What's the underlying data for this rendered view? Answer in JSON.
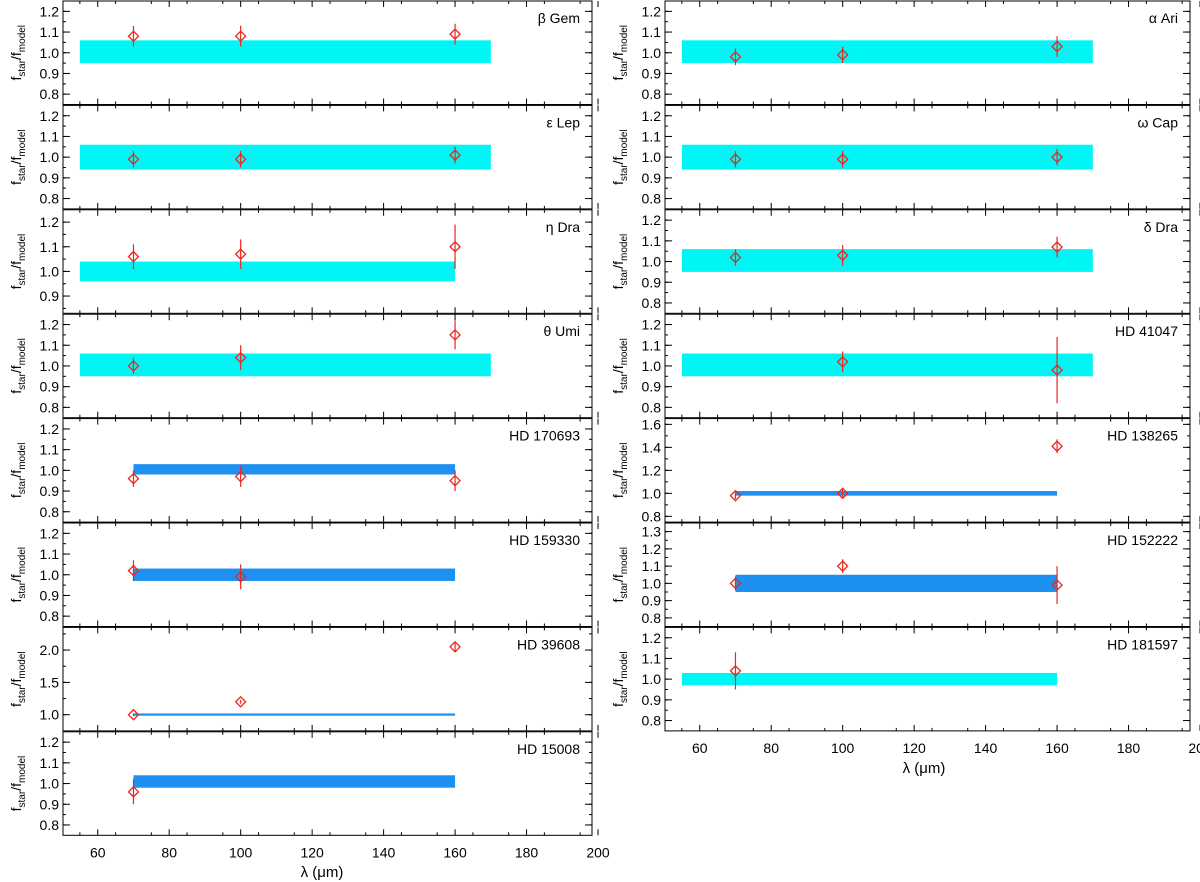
{
  "colors": {
    "cyan_band": "#00f5f5",
    "blue_band": "#1e90f0",
    "marker": "#e8281e",
    "frame": "#000000"
  },
  "marker_icon": "open-diamond",
  "chart_data": [
    {
      "type": "scatter",
      "label": "β Gem",
      "ylim": [
        0.75,
        1.25
      ],
      "yticks": [
        "0.8",
        "0.9",
        "1.0",
        "1.1",
        "1.2"
      ],
      "ytick_values": [
        0.8,
        0.9,
        1.0,
        1.1,
        1.2
      ],
      "band": {
        "x": [
          55,
          170
        ],
        "y": [
          0.95,
          1.06
        ],
        "color": "cyan"
      },
      "points": [
        {
          "x": 70,
          "y": 1.08,
          "err": 0.05
        },
        {
          "x": 100,
          "y": 1.08,
          "err": 0.05
        },
        {
          "x": 160,
          "y": 1.09,
          "err": 0.05
        }
      ]
    },
    {
      "type": "scatter",
      "label": "ε Lep",
      "ylim": [
        0.75,
        1.25
      ],
      "yticks": [
        "0.8",
        "0.9",
        "1.0",
        "1.1",
        "1.2"
      ],
      "ytick_values": [
        0.8,
        0.9,
        1.0,
        1.1,
        1.2
      ],
      "band": {
        "x": [
          55,
          170
        ],
        "y": [
          0.94,
          1.06
        ],
        "color": "cyan"
      },
      "points": [
        {
          "x": 70,
          "y": 0.99,
          "err": 0.04
        },
        {
          "x": 100,
          "y": 0.99,
          "err": 0.04
        },
        {
          "x": 160,
          "y": 1.01,
          "err": 0.04
        }
      ]
    },
    {
      "type": "scatter",
      "label": "η Dra",
      "ylim": [
        0.83,
        1.25
      ],
      "yticks": [
        "0.9",
        "1.0",
        "1.1",
        "1.2"
      ],
      "ytick_values": [
        0.9,
        1.0,
        1.1,
        1.2
      ],
      "band": {
        "x": [
          55,
          160
        ],
        "y": [
          0.96,
          1.04
        ],
        "color": "cyan"
      },
      "points": [
        {
          "x": 70,
          "y": 1.06,
          "err": 0.05
        },
        {
          "x": 100,
          "y": 1.07,
          "err": 0.06
        },
        {
          "x": 160,
          "y": 1.1,
          "err": 0.09
        }
      ]
    },
    {
      "type": "scatter",
      "label": "θ Umi",
      "ylim": [
        0.75,
        1.25
      ],
      "yticks": [
        "0.8",
        "0.9",
        "1.0",
        "1.1",
        "1.2"
      ],
      "ytick_values": [
        0.8,
        0.9,
        1.0,
        1.1,
        1.2
      ],
      "band": {
        "x": [
          55,
          170
        ],
        "y": [
          0.95,
          1.06
        ],
        "color": "cyan"
      },
      "points": [
        {
          "x": 70,
          "y": 1.0,
          "err": 0.04
        },
        {
          "x": 100,
          "y": 1.04,
          "err": 0.06
        },
        {
          "x": 160,
          "y": 1.15,
          "err": 0.07
        }
      ]
    },
    {
      "type": "scatter",
      "label": "HD 170693",
      "ylim": [
        0.75,
        1.25
      ],
      "yticks": [
        "0.8",
        "0.9",
        "1.0",
        "1.1",
        "1.2"
      ],
      "ytick_values": [
        0.8,
        0.9,
        1.0,
        1.1,
        1.2
      ],
      "band": {
        "x": [
          70,
          160
        ],
        "y": [
          0.98,
          1.03
        ],
        "color": "blue"
      },
      "points": [
        {
          "x": 70,
          "y": 0.96,
          "err": 0.04
        },
        {
          "x": 100,
          "y": 0.97,
          "err": 0.05
        },
        {
          "x": 160,
          "y": 0.95,
          "err": 0.05
        }
      ]
    },
    {
      "type": "scatter",
      "label": "HD 159330",
      "ylim": [
        0.75,
        1.25
      ],
      "yticks": [
        "0.8",
        "0.9",
        "1.0",
        "1.1",
        "1.2"
      ],
      "ytick_values": [
        0.8,
        0.9,
        1.0,
        1.1,
        1.2
      ],
      "band": {
        "x": [
          70,
          160
        ],
        "y": [
          0.97,
          1.03
        ],
        "color": "blue"
      },
      "points": [
        {
          "x": 70,
          "y": 1.02,
          "err": 0.05
        },
        {
          "x": 100,
          "y": 0.99,
          "err": 0.06
        }
      ]
    },
    {
      "type": "scatter",
      "label": "HD 39608",
      "ylim": [
        0.75,
        2.35
      ],
      "yticks": [
        "1.0",
        "1.5",
        "2.0"
      ],
      "ytick_values": [
        1.0,
        1.5,
        2.0
      ],
      "band": {
        "x": [
          70,
          160
        ],
        "y": [
          0.985,
          1.02
        ],
        "color": "blue"
      },
      "points": [
        {
          "x": 70,
          "y": 1.0,
          "err": 0.02
        },
        {
          "x": 100,
          "y": 1.2,
          "err": 0.03
        },
        {
          "x": 160,
          "y": 2.05,
          "err": 0.08
        }
      ]
    },
    {
      "type": "scatter",
      "label": "HD 15008",
      "ylim": [
        0.75,
        1.25
      ],
      "yticks": [
        "0.8",
        "0.9",
        "1.0",
        "1.1",
        "1.2"
      ],
      "ytick_values": [
        0.8,
        0.9,
        1.0,
        1.1,
        1.2
      ],
      "band": {
        "x": [
          70,
          160
        ],
        "y": [
          0.98,
          1.04
        ],
        "color": "blue"
      },
      "points": [
        {
          "x": 70,
          "y": 0.96,
          "err": 0.06
        }
      ]
    },
    {
      "type": "scatter",
      "label": "α Ari",
      "ylim": [
        0.75,
        1.25
      ],
      "yticks": [
        "0.8",
        "0.9",
        "1.0",
        "1.1",
        "1.2"
      ],
      "ytick_values": [
        0.8,
        0.9,
        1.0,
        1.1,
        1.2
      ],
      "band": {
        "x": [
          55,
          170
        ],
        "y": [
          0.95,
          1.06
        ],
        "color": "cyan"
      },
      "points": [
        {
          "x": 70,
          "y": 0.98,
          "err": 0.04
        },
        {
          "x": 100,
          "y": 0.99,
          "err": 0.04
        },
        {
          "x": 160,
          "y": 1.03,
          "err": 0.05
        }
      ]
    },
    {
      "type": "scatter",
      "label": "ω Cap",
      "ylim": [
        0.75,
        1.25
      ],
      "yticks": [
        "0.8",
        "0.9",
        "1.0",
        "1.1",
        "1.2"
      ],
      "ytick_values": [
        0.8,
        0.9,
        1.0,
        1.1,
        1.2
      ],
      "band": {
        "x": [
          55,
          170
        ],
        "y": [
          0.94,
          1.06
        ],
        "color": "cyan"
      },
      "points": [
        {
          "x": 70,
          "y": 0.99,
          "err": 0.04
        },
        {
          "x": 100,
          "y": 0.99,
          "err": 0.04
        },
        {
          "x": 160,
          "y": 1.0,
          "err": 0.04
        }
      ]
    },
    {
      "type": "scatter",
      "label": "δ Dra",
      "ylim": [
        0.75,
        1.25
      ],
      "yticks": [
        "0.8",
        "0.9",
        "1.0",
        "1.1",
        "1.2"
      ],
      "ytick_values": [
        0.8,
        0.9,
        1.0,
        1.1,
        1.2
      ],
      "band": {
        "x": [
          55,
          170
        ],
        "y": [
          0.95,
          1.06
        ],
        "color": "cyan"
      },
      "points": [
        {
          "x": 70,
          "y": 1.02,
          "err": 0.04
        },
        {
          "x": 100,
          "y": 1.03,
          "err": 0.05
        },
        {
          "x": 160,
          "y": 1.07,
          "err": 0.05
        }
      ]
    },
    {
      "type": "scatter",
      "label": "HD 41047",
      "ylim": [
        0.75,
        1.25
      ],
      "yticks": [
        "0.8",
        "0.9",
        "1.0",
        "1.1",
        "1.2"
      ],
      "ytick_values": [
        0.8,
        0.9,
        1.0,
        1.1,
        1.2
      ],
      "band": {
        "x": [
          55,
          170
        ],
        "y": [
          0.95,
          1.06
        ],
        "color": "cyan"
      },
      "points": [
        {
          "x": 100,
          "y": 1.02,
          "err": 0.05
        },
        {
          "x": 160,
          "y": 0.98,
          "err": 0.16
        }
      ]
    },
    {
      "type": "scatter",
      "label": "HD 138265",
      "ylim": [
        0.75,
        1.65
      ],
      "yticks": [
        "0.8",
        "1.0",
        "1.2",
        "1.4",
        "1.6"
      ],
      "ytick_values": [
        0.8,
        1.0,
        1.2,
        1.4,
        1.6
      ],
      "band": {
        "x": [
          70,
          160
        ],
        "y": [
          0.98,
          1.02
        ],
        "color": "blue"
      },
      "points": [
        {
          "x": 70,
          "y": 0.98,
          "err": 0.03
        },
        {
          "x": 100,
          "y": 1.0,
          "err": 0.04
        },
        {
          "x": 160,
          "y": 1.41,
          "err": 0.06
        }
      ]
    },
    {
      "type": "scatter",
      "label": "HD 152222",
      "ylim": [
        0.75,
        1.35
      ],
      "yticks": [
        "0.8",
        "0.9",
        "1.0",
        "1.1",
        "1.2",
        "1.3"
      ],
      "ytick_values": [
        0.8,
        0.9,
        1.0,
        1.1,
        1.2,
        1.3
      ],
      "band": {
        "x": [
          70,
          160
        ],
        "y": [
          0.95,
          1.05
        ],
        "color": "blue"
      },
      "points": [
        {
          "x": 70,
          "y": 1.0,
          "err": 0.04
        },
        {
          "x": 100,
          "y": 1.1,
          "err": 0.04
        },
        {
          "x": 160,
          "y": 0.99,
          "err": 0.11
        }
      ]
    },
    {
      "type": "scatter",
      "label": "HD 181597",
      "ylim": [
        0.75,
        1.25
      ],
      "yticks": [
        "0.8",
        "0.9",
        "1.0",
        "1.1",
        "1.2"
      ],
      "ytick_values": [
        0.8,
        0.9,
        1.0,
        1.1,
        1.2
      ],
      "band": {
        "x": [
          55,
          160
        ],
        "y": [
          0.97,
          1.03
        ],
        "color": "cyan"
      },
      "points": [
        {
          "x": 70,
          "y": 1.04,
          "err": 0.09
        }
      ]
    }
  ],
  "axes": {
    "xlim": [
      50,
      200
    ],
    "xticks": [
      "60",
      "80",
      "100",
      "120",
      "140",
      "160",
      "180",
      "200"
    ],
    "xtick_values": [
      60,
      80,
      100,
      120,
      140,
      160,
      180,
      200
    ],
    "xlabel_main": "λ (",
    "xlabel_mu": "μ",
    "xlabel_unit": "m)",
    "ylabel": {
      "f1": "f",
      "s1": "star",
      "slash": "/f",
      "s2": "model"
    }
  }
}
